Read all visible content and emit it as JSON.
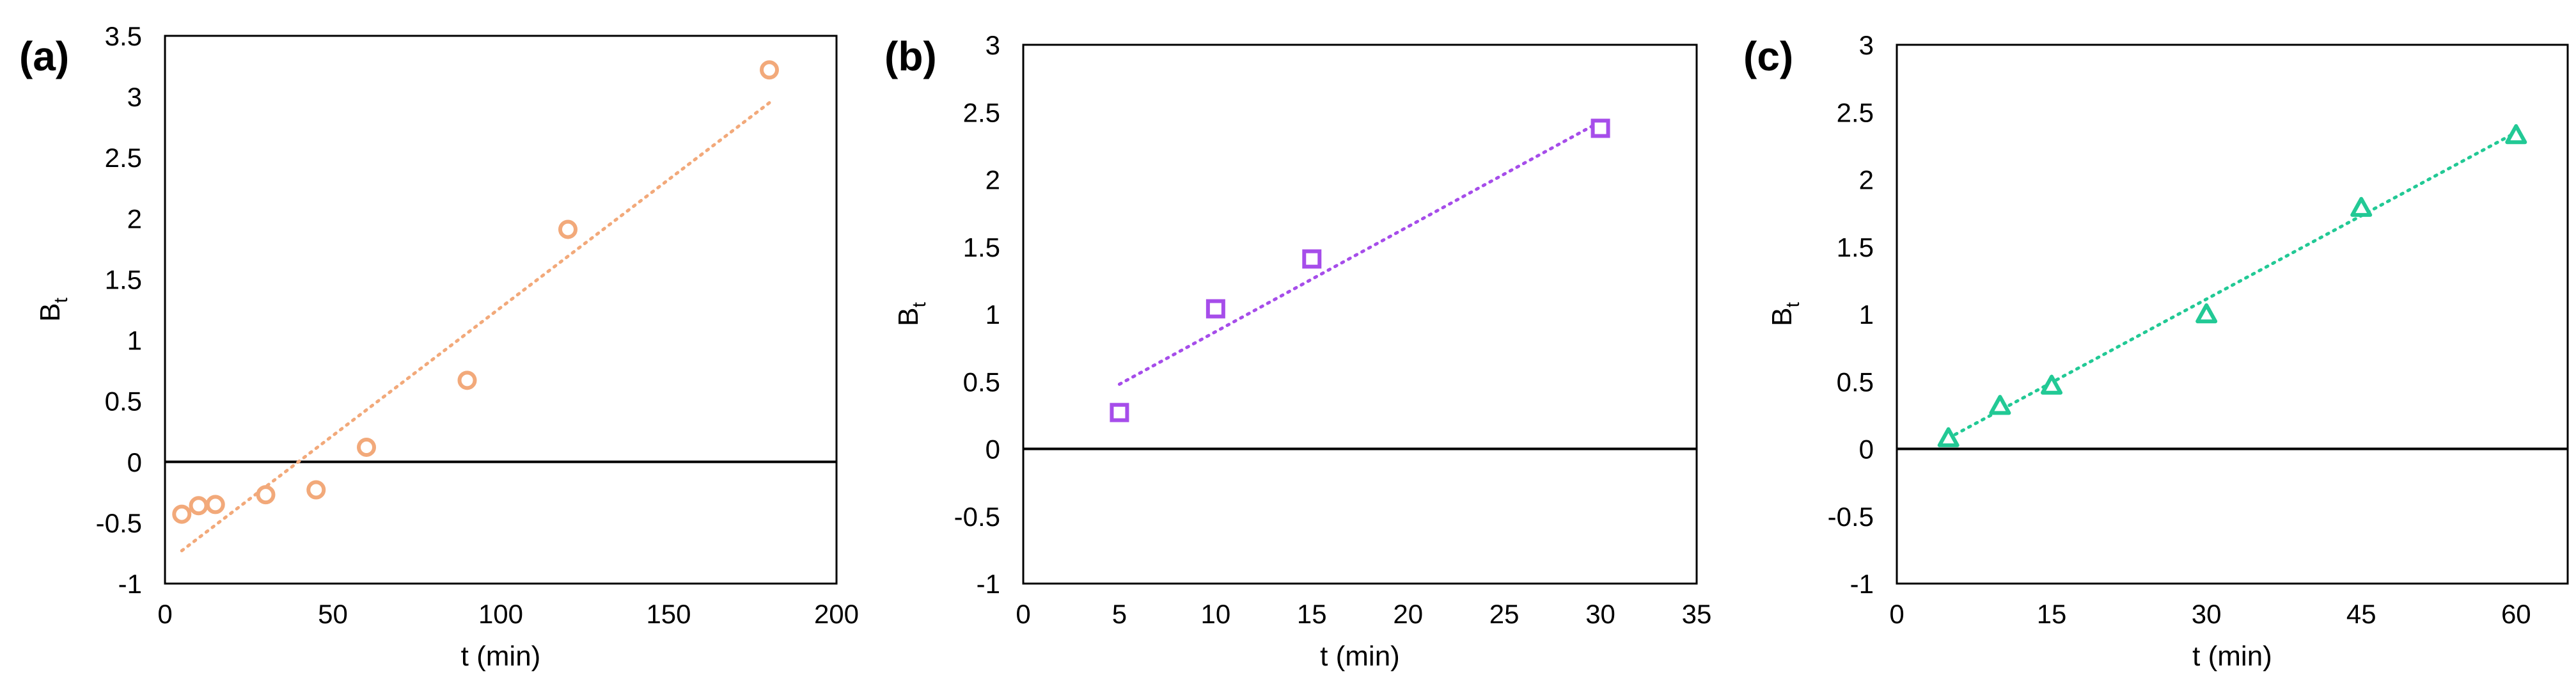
{
  "chart_data": [
    {
      "type": "scatter",
      "panel_label": "(a)",
      "xlabel": "t (min)",
      "ylabel": "B",
      "ylabel_sub": "t",
      "xlim": [
        0,
        200
      ],
      "ylim": [
        -1,
        3.5
      ],
      "xticks": [
        0,
        50,
        100,
        150,
        200
      ],
      "yticks": [
        -1,
        -0.5,
        0,
        0.5,
        1,
        1.5,
        2,
        2.5,
        3,
        3.5
      ],
      "xtick_labels": [
        "0",
        "50",
        "100",
        "150",
        "200"
      ],
      "ytick_labels": [
        "-1",
        "-0.5",
        "0",
        "0.5",
        "1",
        "1.5",
        "2",
        "2.5",
        "3",
        "3.5"
      ],
      "grid": false,
      "marker": "circle",
      "color": "#f2a97a",
      "series": [
        {
          "x": [
            5,
            10,
            15,
            30,
            45,
            60,
            90,
            120,
            180
          ],
          "y": [
            -0.43,
            -0.36,
            -0.35,
            -0.27,
            -0.23,
            0.12,
            0.67,
            1.91,
            3.22
          ]
        }
      ],
      "trendline": {
        "x": [
          5,
          180
        ],
        "y": [
          -0.73,
          2.95
        ]
      }
    },
    {
      "type": "scatter",
      "panel_label": "(b)",
      "xlabel": "t (min)",
      "ylabel": "B",
      "ylabel_sub": "t",
      "xlim": [
        0,
        35
      ],
      "ylim": [
        -1,
        3
      ],
      "xticks": [
        0,
        5,
        10,
        15,
        20,
        25,
        30,
        35
      ],
      "yticks": [
        -1,
        -0.5,
        0,
        0.5,
        1,
        1.5,
        2,
        2.5,
        3
      ],
      "xtick_labels": [
        "0",
        "5",
        "10",
        "15",
        "20",
        "25",
        "30",
        "35"
      ],
      "ytick_labels": [
        "-1",
        "-0.5",
        "0",
        "0.5",
        "1",
        "1.5",
        "2",
        "2.5",
        "3"
      ],
      "grid": false,
      "marker": "square",
      "color": "#a64dea",
      "series": [
        {
          "x": [
            5,
            10,
            15,
            30
          ],
          "y": [
            0.27,
            1.04,
            1.41,
            2.38
          ]
        }
      ],
      "trendline": {
        "x": [
          5,
          30
        ],
        "y": [
          0.48,
          2.43
        ]
      }
    },
    {
      "type": "scatter",
      "panel_label": "(c)",
      "xlabel": "t (min)",
      "ylabel": "B",
      "ylabel_sub": "t",
      "xlim": [
        0,
        65
      ],
      "ylim": [
        -1,
        3
      ],
      "xticks": [
        0,
        15,
        30,
        45,
        60
      ],
      "yticks": [
        -1,
        -0.5,
        0,
        0.5,
        1,
        1.5,
        2,
        2.5,
        3
      ],
      "xtick_labels": [
        "0",
        "15",
        "30",
        "45",
        "60"
      ],
      "ytick_labels": [
        "-1",
        "-0.5",
        "0",
        "0.5",
        "1",
        "1.5",
        "2",
        "2.5",
        "3"
      ],
      "grid": false,
      "marker": "triangle",
      "color": "#22c995",
      "series": [
        {
          "x": [
            5,
            10,
            15,
            30,
            45,
            60
          ],
          "y": [
            0.08,
            0.32,
            0.47,
            1.0,
            1.79,
            2.33
          ]
        }
      ],
      "trendline": {
        "x": [
          5,
          60
        ],
        "y": [
          0.08,
          2.35
        ]
      }
    }
  ]
}
